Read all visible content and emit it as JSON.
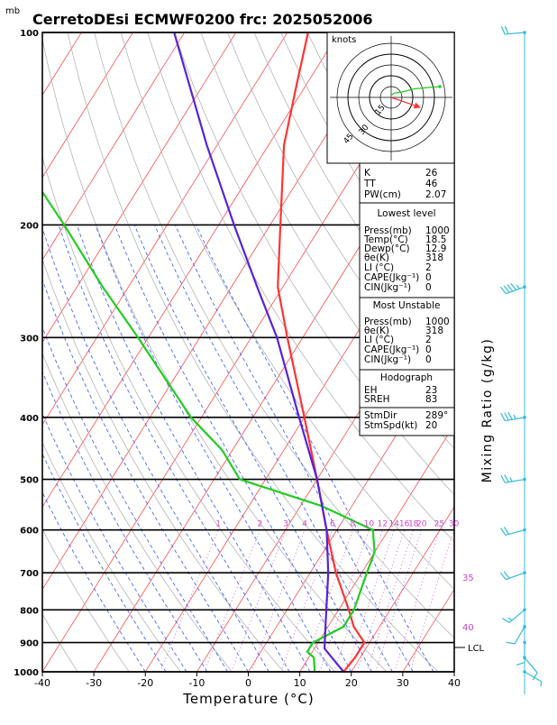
{
  "header": {
    "title": "CerretoDEsi ECMWF0200  frc: 2025052006",
    "pressure_unit": "mb"
  },
  "axes": {
    "xlabel": "Temperature (°C)",
    "right_label": "Mixing Ratio (g/kg)",
    "x_ticks": [
      -40,
      -30,
      -20,
      -10,
      0,
      10,
      20,
      30,
      40
    ],
    "p_ticks": [
      100,
      200,
      300,
      400,
      500,
      600,
      700,
      800,
      900,
      1000
    ],
    "mixing_ratio_labels": [
      "1",
      "2",
      "3",
      "4",
      "6",
      "8",
      "10",
      "12",
      "14",
      "16",
      "18",
      "20",
      "25",
      "30"
    ],
    "theta_labels": [
      "30",
      "35",
      "40"
    ],
    "lcl_label": "LCL"
  },
  "hodograph": {
    "unit_label": "knots",
    "ring_labels": [
      "15",
      "30",
      "45"
    ]
  },
  "indices": {
    "top": [
      {
        "label": "K",
        "value": "26"
      },
      {
        "label": "TT",
        "value": "46"
      },
      {
        "label": "PW(cm)",
        "value": "2.07"
      }
    ],
    "lowest_title": "Lowest level",
    "lowest": [
      {
        "label": "Press(mb)",
        "value": "1000"
      },
      {
        "label": "Temp(°C)",
        "value": "18.5"
      },
      {
        "label": "Dewp(°C)",
        "value": "12.9"
      },
      {
        "label": "θe(K)",
        "value": "318"
      },
      {
        "label": "LI (°C)",
        "value": "2"
      },
      {
        "label": "CAPE(Jkg⁻¹)",
        "value": "0"
      },
      {
        "label": "CIN(Jkg⁻¹)",
        "value": "0"
      }
    ],
    "unstable_title": "Most Unstable",
    "unstable": [
      {
        "label": "Press(mb)",
        "value": "1000"
      },
      {
        "label": "θe(K)",
        "value": "318"
      },
      {
        "label": "LI (°C)",
        "value": "2"
      },
      {
        "label": "CAPE(Jkg⁻¹)",
        "value": "0"
      },
      {
        "label": "CIN(Jkg⁻¹)",
        "value": "0"
      }
    ],
    "hodo_title": "Hodograph",
    "hodo": [
      {
        "label": "EH",
        "value": "23"
      },
      {
        "label": "SREH",
        "value": "83"
      },
      {
        "label": "StmDir",
        "value": "289°"
      },
      {
        "label": "StmSpd(kt)",
        "value": "20"
      }
    ]
  },
  "colors": {
    "temperature": "#ff3333",
    "dewpoint": "#22cc22",
    "parcel": "#5522dd",
    "isotherm": "#ff3333",
    "dry_adiabat": "#aaaaaa",
    "moist_adiabat": "#3355ff",
    "mixing_ratio": "#cc44cc",
    "barb": "#33bbdd"
  },
  "chart_data": {
    "type": "skew-t",
    "x_range": [
      -40,
      40
    ],
    "p_range": [
      100,
      1000
    ],
    "series": [
      {
        "name": "Temperature",
        "points": [
          [
            1000,
            18.5
          ],
          [
            950,
            19
          ],
          [
            900,
            19
          ],
          [
            850,
            15
          ],
          [
            800,
            12
          ],
          [
            700,
            5
          ],
          [
            600,
            -2
          ],
          [
            500,
            -10
          ],
          [
            400,
            -20
          ],
          [
            300,
            -33
          ],
          [
            250,
            -41
          ],
          [
            200,
            -48
          ],
          [
            150,
            -57
          ],
          [
            120,
            -62
          ],
          [
            100,
            -66
          ]
        ]
      },
      {
        "name": "Dewpoint",
        "points": [
          [
            1000,
            12.9
          ],
          [
            950,
            11
          ],
          [
            930,
            9
          ],
          [
            900,
            9
          ],
          [
            850,
            13
          ],
          [
            800,
            13
          ],
          [
            700,
            11
          ],
          [
            650,
            10
          ],
          [
            600,
            7
          ],
          [
            550,
            -6
          ],
          [
            500,
            -25
          ],
          [
            450,
            -32
          ],
          [
            400,
            -42
          ],
          [
            300,
            -62
          ],
          [
            250,
            -75
          ],
          [
            200,
            -90
          ],
          [
            150,
            -110
          ],
          [
            100,
            -125
          ]
        ]
      },
      {
        "name": "Parcel",
        "points": [
          [
            1000,
            18.5
          ],
          [
            920,
            12
          ],
          [
            850,
            9.5
          ],
          [
            700,
            3.5
          ],
          [
            600,
            -2
          ],
          [
            500,
            -10
          ],
          [
            400,
            -21
          ],
          [
            300,
            -35
          ],
          [
            250,
            -45
          ],
          [
            200,
            -57
          ],
          [
            150,
            -72
          ],
          [
            100,
            -92
          ]
        ]
      }
    ],
    "wind_barbs": [
      {
        "p": 100,
        "dir": 265,
        "spd": 20
      },
      {
        "p": 250,
        "dir": 250,
        "spd": 45
      },
      {
        "p": 400,
        "dir": 260,
        "spd": 35
      },
      {
        "p": 500,
        "dir": 260,
        "spd": 25
      },
      {
        "p": 600,
        "dir": 255,
        "spd": 20
      },
      {
        "p": 700,
        "dir": 250,
        "spd": 20
      },
      {
        "p": 800,
        "dir": 230,
        "spd": 15
      },
      {
        "p": 850,
        "dir": 210,
        "spd": 10
      },
      {
        "p": 900,
        "dir": 180,
        "spd": 10
      },
      {
        "p": 950,
        "dir": 140,
        "spd": 10
      },
      {
        "p": 1000,
        "dir": 120,
        "spd": 5
      }
    ],
    "hodograph_points": [
      [
        0,
        2
      ],
      [
        3,
        4
      ],
      [
        10,
        5
      ],
      [
        22,
        8
      ],
      [
        45,
        10
      ]
    ],
    "storm_motion": {
      "dir": 289,
      "spd": 20
    },
    "lcl_p": 920
  }
}
